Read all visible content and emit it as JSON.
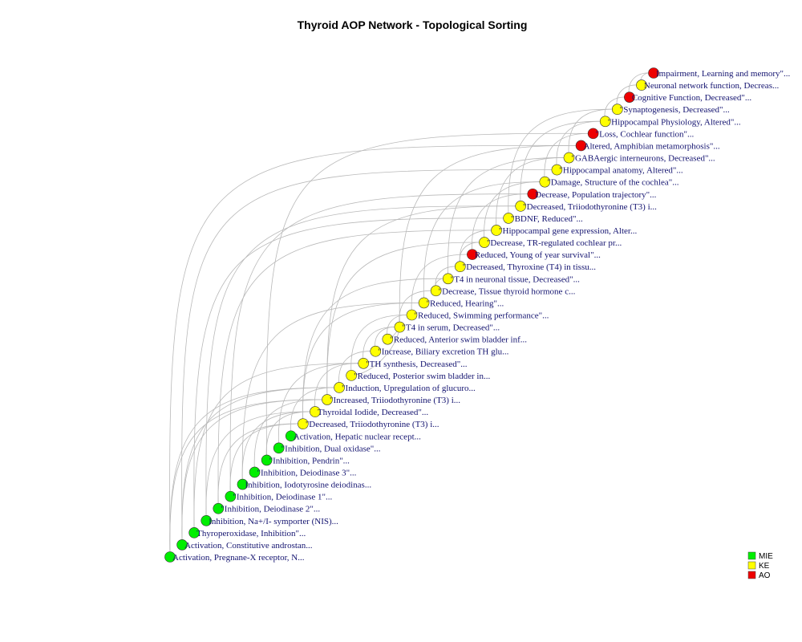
{
  "title": "Thyroid  AOP Network - Topological Sorting",
  "colors": {
    "MIE": "#00ee00",
    "KE": "#ffff00",
    "AO": "#ee0000",
    "label": "#141470",
    "edge": "#b9b9b9"
  },
  "legend": [
    {
      "type": "MIE",
      "label": "MIE"
    },
    {
      "type": "KE",
      "label": "KE"
    },
    {
      "type": "AO",
      "label": "AO"
    }
  ],
  "nodes": [
    {
      "label": "Activation, Pregnane-X receptor, N...",
      "type": "MIE"
    },
    {
      "label": "Activation, Constitutive androstan...",
      "type": "MIE"
    },
    {
      "label": "Thyroperoxidase, Inhibition\"...",
      "type": "MIE"
    },
    {
      "label": "Inhibition, Na+/I- symporter (NIS)...",
      "type": "MIE"
    },
    {
      "label": "\"Inhibition, Deiodinase 2\"...",
      "type": "MIE"
    },
    {
      "label": "\"Inhibition, Deiodinase 1\"...",
      "type": "MIE"
    },
    {
      "label": "Inhibition, Iodotyrosine deiodinas...",
      "type": "MIE"
    },
    {
      "label": "\"Inhibition, Deiodinase 3\"...",
      "type": "MIE"
    },
    {
      "label": "\"Inhibition, Pendrin\"...",
      "type": "MIE"
    },
    {
      "label": "\"Inhibition, Dual oxidase\"...",
      "type": "MIE"
    },
    {
      "label": "Activation, Hepatic nuclear recept...",
      "type": "MIE"
    },
    {
      "label": "\"Decreased, Triiodothyronine (T3) i...",
      "type": "KE"
    },
    {
      "label": "Thyroidal Iodide, Decreased\"...",
      "type": "KE"
    },
    {
      "label": "\"Increased, Triiodothyronine (T3) i...",
      "type": "KE"
    },
    {
      "label": "\"Induction, Upregulation of glucuro...",
      "type": "KE"
    },
    {
      "label": "\"Reduced, Posterior swim bladder in...",
      "type": "KE"
    },
    {
      "label": "\"TH synthesis, Decreased\"...",
      "type": "KE"
    },
    {
      "label": "\"Increase, Biliary excretion TH glu...",
      "type": "KE"
    },
    {
      "label": "\"Reduced, Anterior swim bladder inf...",
      "type": "KE"
    },
    {
      "label": "\"T4 in serum, Decreased\"...",
      "type": "KE"
    },
    {
      "label": "\"Reduced, Swimming performance\"...",
      "type": "KE"
    },
    {
      "label": "\"Reduced, Hearing\"...",
      "type": "KE"
    },
    {
      "label": "\"Decrease, Tissue thyroid hormone c...",
      "type": "KE"
    },
    {
      "label": "\"T4 in neuronal tissue, Decreased\"...",
      "type": "KE"
    },
    {
      "label": "\"Decreased, Thyroxine (T4) in tissu...",
      "type": "KE"
    },
    {
      "label": "Reduced, Young of year survival\"...",
      "type": "AO"
    },
    {
      "label": "\"Decrease, TR-regulated cochlear pr...",
      "type": "KE"
    },
    {
      "label": "\"Hippocampal gene expression, Alter...",
      "type": "KE"
    },
    {
      "label": "\"BDNF, Reduced\"...",
      "type": "KE"
    },
    {
      "label": "\"Decreased, Triiodothyronine (T3) i...",
      "type": "KE"
    },
    {
      "label": "Decrease, Population trajectory\"...",
      "type": "AO"
    },
    {
      "label": "\"Damage, Structure of the cochlea\"...",
      "type": "KE"
    },
    {
      "label": "\"Hippocampal anatomy, Altered\"...",
      "type": "KE"
    },
    {
      "label": "\"GABAergic interneurons, Decreased\"...",
      "type": "KE"
    },
    {
      "label": "Altered, Amphibian metamorphosis\"...",
      "type": "AO"
    },
    {
      "label": "\"Loss, Cochlear function\"...",
      "type": "AO"
    },
    {
      "label": "\"Hippocampal Physiology, Altered\"...",
      "type": "KE"
    },
    {
      "label": "\"Synaptogenesis, Decreased\"...",
      "type": "KE"
    },
    {
      "label": "Cognitive Function, Decreased\"...",
      "type": "AO"
    },
    {
      "label": "Neuronal network function, Decreas...",
      "type": "KE"
    },
    {
      "label": "Impairment, Learning and memory\"...",
      "type": "AO"
    }
  ],
  "edges": [
    [
      0,
      14
    ],
    [
      1,
      14
    ],
    [
      0,
      13
    ],
    [
      1,
      13
    ],
    [
      2,
      16
    ],
    [
      3,
      12
    ],
    [
      4,
      11
    ],
    [
      5,
      11
    ],
    [
      6,
      12
    ],
    [
      7,
      13
    ],
    [
      8,
      12
    ],
    [
      9,
      16
    ],
    [
      10,
      14
    ],
    [
      11,
      23
    ],
    [
      12,
      16
    ],
    [
      13,
      29
    ],
    [
      14,
      17
    ],
    [
      15,
      20
    ],
    [
      16,
      19
    ],
    [
      17,
      19
    ],
    [
      18,
      20
    ],
    [
      19,
      22
    ],
    [
      20,
      25
    ],
    [
      21,
      31
    ],
    [
      22,
      24
    ],
    [
      23,
      33
    ],
    [
      24,
      27
    ],
    [
      25,
      30
    ],
    [
      26,
      31
    ],
    [
      27,
      33
    ],
    [
      28,
      37
    ],
    [
      29,
      36
    ],
    [
      31,
      35
    ],
    [
      32,
      36
    ],
    [
      33,
      37
    ],
    [
      36,
      38
    ],
    [
      37,
      39
    ],
    [
      39,
      40
    ],
    [
      38,
      40
    ],
    [
      24,
      26
    ],
    [
      22,
      23
    ],
    [
      19,
      15
    ],
    [
      19,
      18
    ],
    [
      19,
      34
    ],
    [
      11,
      21
    ],
    [
      13,
      26
    ],
    [
      0,
      34
    ],
    [
      2,
      28
    ],
    [
      3,
      29
    ],
    [
      1,
      32
    ],
    [
      4,
      27
    ],
    [
      6,
      21
    ],
    [
      5,
      30
    ],
    [
      8,
      35
    ]
  ]
}
